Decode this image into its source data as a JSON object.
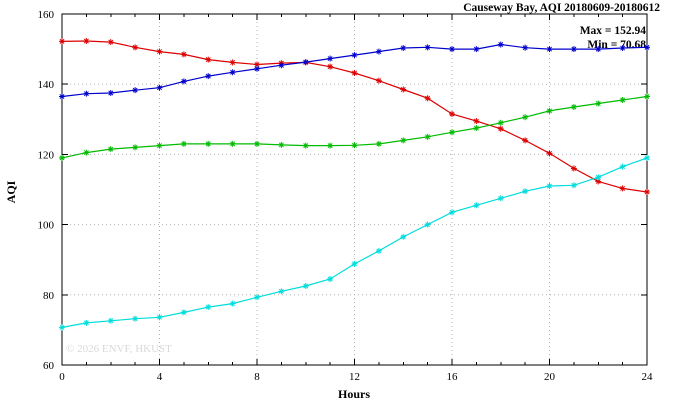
{
  "title": "Causeway Bay, AQI 20180609-20180612",
  "annotations": {
    "max": "Max = 152.94",
    "min": "Min = 70.68"
  },
  "watermark": "© 2026 ENVF, HKUST",
  "chart_data": {
    "type": "line",
    "title": "Causeway Bay, AQI 20180609-20180612",
    "xlabel": "Hours",
    "ylabel": "AQI",
    "xlim": [
      0,
      24
    ],
    "ylim": [
      60,
      160
    ],
    "xticks": [
      0,
      4,
      8,
      12,
      16,
      20,
      24
    ],
    "yticks": [
      60,
      80,
      100,
      120,
      140,
      160
    ],
    "minor_xtick_step": 1,
    "grid": true,
    "legend_position": "none",
    "marker": "asterisk",
    "annotations": [
      "Max = 152.94",
      "Min = 70.68"
    ],
    "x": [
      0,
      1,
      2,
      3,
      4,
      5,
      6,
      7,
      8,
      9,
      10,
      11,
      12,
      13,
      14,
      15,
      16,
      17,
      18,
      19,
      20,
      21,
      22,
      23,
      24
    ],
    "series": [
      {
        "name": "red-series",
        "color": "#dd0000",
        "values": [
          152.2,
          152.3,
          152.0,
          150.5,
          149.3,
          148.5,
          147.0,
          146.2,
          145.6,
          146.0,
          146.2,
          145.0,
          143.2,
          141.0,
          138.5,
          136.0,
          131.5,
          129.5,
          127.3,
          124.0,
          120.3,
          116.0,
          112.3,
          110.3,
          109.3
        ]
      },
      {
        "name": "blue-series",
        "color": "#0000cc",
        "values": [
          136.5,
          137.3,
          137.5,
          138.3,
          139.0,
          140.8,
          142.3,
          143.4,
          144.4,
          145.4,
          146.3,
          147.3,
          148.3,
          149.3,
          150.3,
          150.5,
          150.0,
          150.0,
          151.3,
          150.4,
          150.0,
          150.0,
          150.0,
          150.3,
          150.5
        ]
      },
      {
        "name": "green-series",
        "color": "#00bb00",
        "values": [
          119.0,
          120.5,
          121.5,
          122.0,
          122.5,
          123.0,
          123.0,
          123.0,
          123.0,
          122.7,
          122.5,
          122.5,
          122.6,
          123.0,
          124.0,
          125.0,
          126.3,
          127.5,
          129.0,
          130.6,
          132.4,
          133.5,
          134.5,
          135.5,
          136.5
        ]
      },
      {
        "name": "cyan-series",
        "color": "#00dddd",
        "values": [
          70.7,
          72.0,
          72.6,
          73.2,
          73.6,
          75.0,
          76.5,
          77.5,
          79.3,
          81.0,
          82.5,
          84.5,
          88.8,
          92.5,
          96.5,
          100.0,
          103.5,
          105.5,
          107.5,
          109.5,
          111.0,
          111.2,
          113.5,
          116.5,
          119.0
        ]
      }
    ]
  }
}
